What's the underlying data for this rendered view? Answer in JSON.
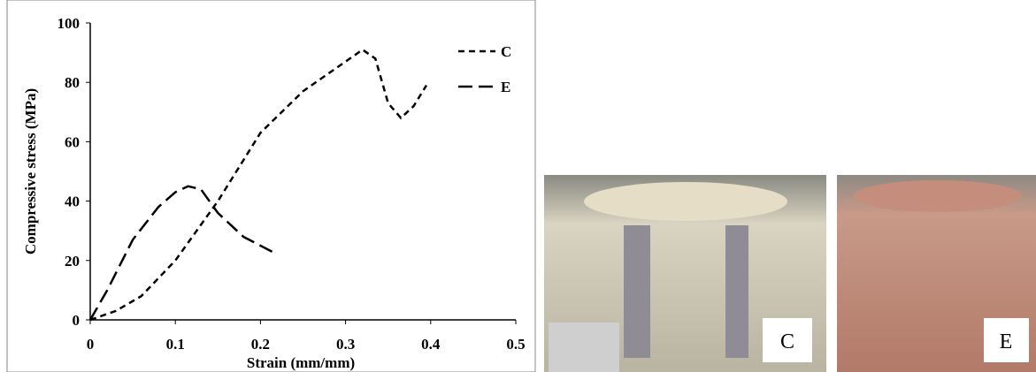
{
  "chart_data": {
    "type": "line",
    "xlabel": "Strain (mm/mm)",
    "ylabel": "Compressive stress (MPa)",
    "xlim": [
      0,
      0.5
    ],
    "xticks": [
      0,
      0.1,
      0.2,
      0.3,
      0.4,
      0.5
    ],
    "ylim": [
      0,
      100
    ],
    "yticks": [
      0,
      20,
      40,
      60,
      80,
      100
    ],
    "legend": "upper-right",
    "series": [
      {
        "name": "C",
        "color": "#000000",
        "dash": "short",
        "x": [
          0,
          0.03,
          0.06,
          0.1,
          0.15,
          0.2,
          0.25,
          0.3,
          0.32,
          0.335,
          0.35,
          0.365,
          0.38,
          0.395
        ],
        "values": [
          0,
          3,
          8,
          20,
          40,
          63,
          77,
          87,
          91,
          88,
          73,
          68,
          72,
          79
        ]
      },
      {
        "name": "E",
        "color": "#000000",
        "dash": "long",
        "x": [
          0,
          0.02,
          0.05,
          0.08,
          0.1,
          0.115,
          0.13,
          0.15,
          0.18,
          0.2,
          0.22
        ],
        "values": [
          0,
          10,
          27,
          38,
          43,
          45,
          44,
          36,
          28,
          25,
          22
        ]
      }
    ]
  },
  "photo_labels": [
    "C",
    "E"
  ]
}
